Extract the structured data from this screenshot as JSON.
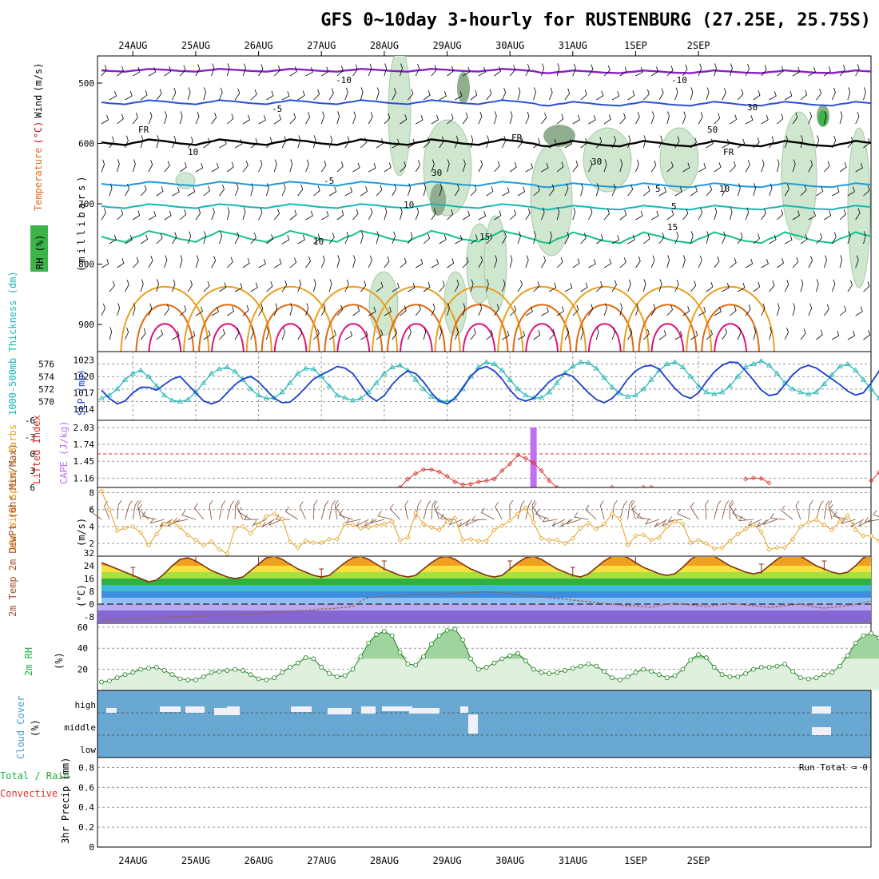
{
  "title": "GFS 0~10day 3-hourly for RUSTENBURG (27.25E, 25.75S)",
  "dates": [
    "24AUG",
    "25AUG",
    "26AUG",
    "27AUG",
    "28AUG",
    "29AUG",
    "30AUG",
    "31AUG",
    "1SEP",
    "2SEP"
  ],
  "panels": {
    "upper_air": {
      "labels": [
        "RH (%)",
        "Temperature",
        "(°C)",
        "Wind",
        "(m/s)",
        "(millibars)"
      ],
      "pressure_ticks": [
        500,
        600,
        700,
        800,
        900
      ],
      "contour_labels": [
        "-10",
        "-10",
        "-5",
        "FR",
        "FR",
        "FR",
        "10",
        "30",
        "30",
        "50",
        "30",
        "10",
        "-5",
        "5",
        "10",
        "5",
        "10",
        "15",
        "15"
      ],
      "colors": {
        "m10": "#8a1ec8",
        "m5": "#2a4fd8",
        "fr": "#000000",
        "p5": "#1e9ad8",
        "p10": "#18b4b4",
        "p15": "#14c08c",
        "warm1": "#e8a020",
        "warm2": "#e06a10",
        "warm3": "#e0107a",
        "rh": "#cfe6cf",
        "rh_dark": "#8fae8f"
      }
    },
    "thickness_slp": {
      "left_label": "1000-500mb Thickness (dm)",
      "right_label": "SLP (mb)",
      "left_ticks": [
        "576",
        "574",
        "572",
        "570"
      ],
      "right_ticks": [
        "1023",
        "1020",
        "1017",
        "1014"
      ]
    },
    "stability": {
      "left_label": "Lifted Index",
      "right_label": "CAPE (J/kg)",
      "left_ticks": [
        "-6",
        "-3",
        "0",
        "3",
        "6"
      ],
      "right_ticks": [
        "2.03",
        "1.74",
        "1.45",
        "1.16"
      ]
    },
    "wind10m": {
      "label": "10m Wind Speed & Barbs",
      "unit": "(m/s)",
      "ticks": [
        "8",
        "6",
        "4",
        "2"
      ]
    },
    "temp2m": {
      "label": "2m Temp 2m DewPt (6hr Min/Max)",
      "unit": "(°C)",
      "ticks": [
        "32",
        "24",
        "16",
        "8",
        "0",
        "-8"
      ]
    },
    "rh2m": {
      "label": "2m RH",
      "unit": "(%)",
      "ticks": [
        "60",
        "40",
        "20"
      ]
    },
    "cloud": {
      "label": "Cloud Cover",
      "unit": "(%)",
      "levels": [
        "high",
        "middle",
        "low"
      ]
    },
    "precip": {
      "label": "3hr Precip (mm)",
      "legend_total": "Total / Rain",
      "legend_conv": "Convective",
      "ticks": [
        "0.8",
        "0.6",
        "0.4",
        "0.2",
        "0"
      ],
      "run_total": "Run Total = 0"
    }
  },
  "chart_data": {
    "type": "meteogram",
    "time_start": "23AUG 12Z",
    "step_hours": 3,
    "thickness_dm": [
      570.5,
      571,
      572,
      573.5,
      574.5,
      575,
      574,
      572.5,
      571,
      570.2,
      570,
      570.3,
      571.5,
      573,
      574.5,
      575.2,
      575.5,
      574.8,
      573.5,
      572,
      571,
      570.5,
      570.6,
      571.5,
      573,
      574.5,
      575.3,
      575.2,
      574,
      572.5,
      571,
      570.6,
      570.2,
      570.5,
      571.5,
      573,
      574.5,
      575.5,
      575.8,
      575,
      573.5,
      572,
      570.8,
      570.2,
      570,
      570.5,
      572,
      574,
      575.5,
      576.3,
      576,
      575,
      573.5,
      572,
      571,
      570.6,
      570.6,
      571.5,
      573,
      574.6,
      575.6,
      576.3,
      576.2,
      575.3,
      573.8,
      572.3,
      571.3,
      570.8,
      571,
      572,
      573.5,
      575,
      576,
      576.3,
      575.5,
      574,
      572.5,
      571.5,
      571.2,
      571.5,
      572.5,
      574,
      575.5,
      576,
      576.5,
      575.8,
      574.5,
      573,
      572,
      571.5,
      571.2,
      571.5,
      572.8,
      574.3,
      575.6,
      576,
      575,
      573.5,
      572,
      570.5,
      569.6,
      569.5,
      570.2
    ],
    "slp_mb": [
      1017.5,
      1016,
      1015,
      1015.5,
      1017,
      1018,
      1018,
      1017.5,
      1018.5,
      1019.5,
      1020,
      1018.5,
      1017,
      1015.5,
      1015,
      1015.5,
      1017,
      1018.5,
      1019.5,
      1020,
      1019,
      1017.5,
      1016,
      1015.2,
      1015.3,
      1016.5,
      1018,
      1019.5,
      1020.3,
      1021,
      1021.8,
      1021.5,
      1020.5,
      1018.5,
      1016.5,
      1015.5,
      1016.5,
      1018.5,
      1020,
      1021,
      1020.5,
      1019,
      1017,
      1015.5,
      1015,
      1016,
      1018,
      1020,
      1021.3,
      1021.8,
      1021,
      1019.5,
      1017.5,
      1016,
      1015.5,
      1016,
      1017.5,
      1019,
      1020,
      1020.5,
      1020,
      1018.5,
      1017,
      1015.8,
      1015.2,
      1016,
      1017.5,
      1019.5,
      1021,
      1021.8,
      1022,
      1021.3,
      1019.5,
      1017.8,
      1016.5,
      1016,
      1017,
      1019,
      1020.8,
      1022,
      1022.6,
      1022.5,
      1021,
      1019.3,
      1017.5,
      1016.5,
      1016.8,
      1018.5,
      1020.3,
      1021.5,
      1022,
      1021.5,
      1020.5,
      1019.5,
      1018.5,
      1017.3,
      1016.6,
      1017,
      1018.8,
      1021,
      1022.3,
      1022.8,
      1023.2
    ],
    "lifted_index": [
      null,
      null,
      null,
      null,
      null,
      null,
      null,
      null,
      null,
      null,
      null,
      null,
      null,
      null,
      null,
      null,
      null,
      null,
      null,
      null,
      null,
      null,
      null,
      null,
      null,
      null,
      null,
      null,
      null,
      null,
      null,
      null,
      null,
      null,
      null,
      null,
      null,
      null,
      6,
      4.5,
      3.5,
      2.8,
      2.8,
      3.2,
      4,
      5,
      5.5,
      5.4,
      5,
      4.8,
      4.5,
      3,
      1.8,
      0.2,
      0.8,
      1.6,
      3,
      4.8,
      6,
      null,
      null,
      null,
      null,
      null,
      null,
      6,
      null,
      null,
      null,
      6,
      6,
      null,
      null,
      null,
      null,
      null,
      null,
      null,
      null,
      null,
      null,
      null,
      4.5,
      4.3,
      4.4,
      5.2,
      null,
      null,
      null,
      null,
      null,
      null,
      null,
      null,
      null,
      null,
      null,
      null,
      4.8,
      3.3,
      2.4,
      null,
      null
    ],
    "cape": {
      "time_index": 55,
      "value": 2.03
    },
    "wind10m_ms": [
      8.2,
      6,
      3.5,
      3.8,
      4,
      3.3,
      1.8,
      3.1,
      4.3,
      4.6,
      3.9,
      3,
      2.4,
      1.8,
      2.2,
      1.3,
      0.8,
      3.8,
      4,
      3.2,
      4.2,
      5.2,
      5.5,
      4.9,
      2.2,
      1.5,
      2.3,
      2.1,
      2.1,
      2.5,
      2.5,
      4.3,
      4.2,
      3.8,
      3.9,
      4.1,
      4.3,
      4.6,
      2.4,
      2.7,
      5.6,
      4.3,
      3.9,
      3.6,
      4.6,
      5,
      2.4,
      2.5,
      2.3,
      2.3,
      3.6,
      4.1,
      4.7,
      5.5,
      6.2,
      4.5,
      2.6,
      2.4,
      2.4,
      2,
      2.6,
      3.8,
      4.4,
      3.7,
      4.3,
      5.5,
      4.9,
      1.8,
      2.9,
      3,
      2.4,
      2.7,
      4,
      4.6,
      4.3,
      2.1,
      2.4,
      2,
      1.4,
      1.5,
      2.3,
      3.1,
      3.7,
      4.2,
      3.4,
      1.3,
      1.5,
      1.5,
      2.5,
      4,
      4.5,
      4.8,
      4.2,
      3.6,
      4.6,
      5.3,
      3.6,
      2.9,
      2.9,
      2.3,
      2.8,
      3.3,
      4
    ],
    "temp2m_c": [
      26,
      24,
      22,
      20,
      18,
      16,
      14,
      15,
      19,
      24,
      28,
      29,
      27,
      24,
      21,
      19,
      17,
      16,
      17,
      21,
      25,
      29,
      30,
      28,
      25,
      22,
      20,
      18,
      17,
      18,
      22,
      26,
      29,
      30,
      28,
      25,
      22,
      20,
      18,
      17,
      18,
      22,
      26,
      29,
      30,
      28,
      25,
      22,
      20,
      18,
      17,
      18,
      22,
      26,
      29,
      30,
      28,
      25,
      22,
      20,
      18,
      17,
      19,
      23,
      27,
      30,
      31,
      29,
      26,
      23,
      21,
      19,
      18,
      19,
      23,
      28,
      31,
      32,
      30,
      27,
      24,
      22,
      20,
      19,
      20,
      24,
      28,
      31,
      32,
      30,
      27,
      24,
      22,
      20,
      19,
      20,
      24,
      29,
      31,
      31,
      29,
      26,
      24,
      21,
      19
    ],
    "dewpt2m_c": [
      -10,
      -10,
      -9.5,
      -9.5,
      -9,
      -9,
      -9,
      -8.5,
      -8.5,
      -8,
      -8,
      -8,
      -7.5,
      -7.5,
      -7,
      -7,
      -6.5,
      -6.5,
      -6,
      -6,
      -6,
      -5.5,
      -5,
      -5,
      -4.5,
      -4,
      -4,
      -3.5,
      -3,
      -3,
      -2.5,
      -2,
      -1.5,
      2,
      4,
      4.5,
      5,
      5.2,
      5.5,
      5.8,
      6,
      6.2,
      6,
      6.3,
      6.5,
      6.8,
      7,
      7.2,
      7.5,
      7.8,
      7.5,
      7,
      6.5,
      6,
      5.5,
      5,
      4.5,
      4,
      3.5,
      3,
      2.5,
      2,
      1.5,
      1,
      0.5,
      0,
      -0.5,
      -1,
      -1,
      -1.5,
      -2,
      -1,
      0,
      0.5,
      0,
      -0.5,
      -1,
      -1.5,
      -1,
      0,
      0.5,
      0,
      -0.5,
      -1,
      -1.5,
      -2,
      -1.5,
      -1,
      -0.5,
      0,
      -1,
      -2,
      -2.5,
      -2,
      -1.5,
      -1,
      0,
      1,
      2,
      3,
      4,
      5,
      5.5
    ],
    "rh2m_pct": [
      8,
      9,
      12,
      15,
      17,
      20,
      21,
      22,
      19,
      15,
      11,
      10,
      10,
      13,
      17,
      18,
      19,
      20,
      19,
      15,
      11,
      10,
      12,
      17,
      22,
      26,
      31,
      30,
      22,
      16,
      13,
      14,
      20,
      32,
      45,
      53,
      56,
      52,
      36,
      25,
      24,
      32,
      44,
      52,
      57,
      58,
      48,
      30,
      20,
      22,
      26,
      30,
      33,
      35,
      28,
      20,
      17,
      16,
      17,
      19,
      21,
      23,
      25,
      23,
      18,
      12,
      10,
      13,
      17,
      20,
      18,
      15,
      12,
      14,
      20,
      29,
      34,
      31,
      22,
      15,
      13,
      13,
      16,
      20,
      22,
      22,
      23,
      25,
      18,
      12,
      11,
      12,
      15,
      17,
      23,
      33,
      45,
      52,
      54,
      50,
      47,
      44,
      42
    ],
    "precip_mm": []
  }
}
